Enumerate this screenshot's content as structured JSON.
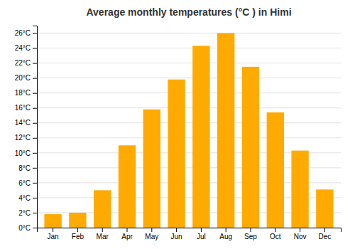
{
  "chart_data": {
    "type": "bar",
    "title": "Average monthly temperatures (°C ) in Himi",
    "categories": [
      "Jan",
      "Feb",
      "Mar",
      "Apr",
      "May",
      "Jun",
      "Jul",
      "Aug",
      "Sep",
      "Oct",
      "Nov",
      "Dec"
    ],
    "values": [
      1.8,
      2.0,
      5.0,
      11.0,
      15.8,
      19.8,
      24.3,
      26.0,
      21.5,
      15.4,
      10.3,
      5.1
    ],
    "color": "#FFAA00",
    "ylim": [
      0,
      27
    ],
    "yticks": [
      {
        "value": 0,
        "label": "0°C"
      },
      {
        "value": 2,
        "label": "2°C"
      },
      {
        "value": 4,
        "label": "4°C"
      },
      {
        "value": 6,
        "label": "6°C"
      },
      {
        "value": 8,
        "label": "8°C"
      },
      {
        "value": 10,
        "label": "10°C"
      },
      {
        "value": 12,
        "label": "12°C"
      },
      {
        "value": 14,
        "label": "14°C"
      },
      {
        "value": 16,
        "label": "16°C"
      },
      {
        "value": 18,
        "label": "18°C"
      },
      {
        "value": 20,
        "label": "20°C"
      },
      {
        "value": 22,
        "label": "22°C"
      },
      {
        "value": 24,
        "label": "24°C"
      },
      {
        "value": 26,
        "label": "26°C"
      }
    ],
    "grid": true
  }
}
